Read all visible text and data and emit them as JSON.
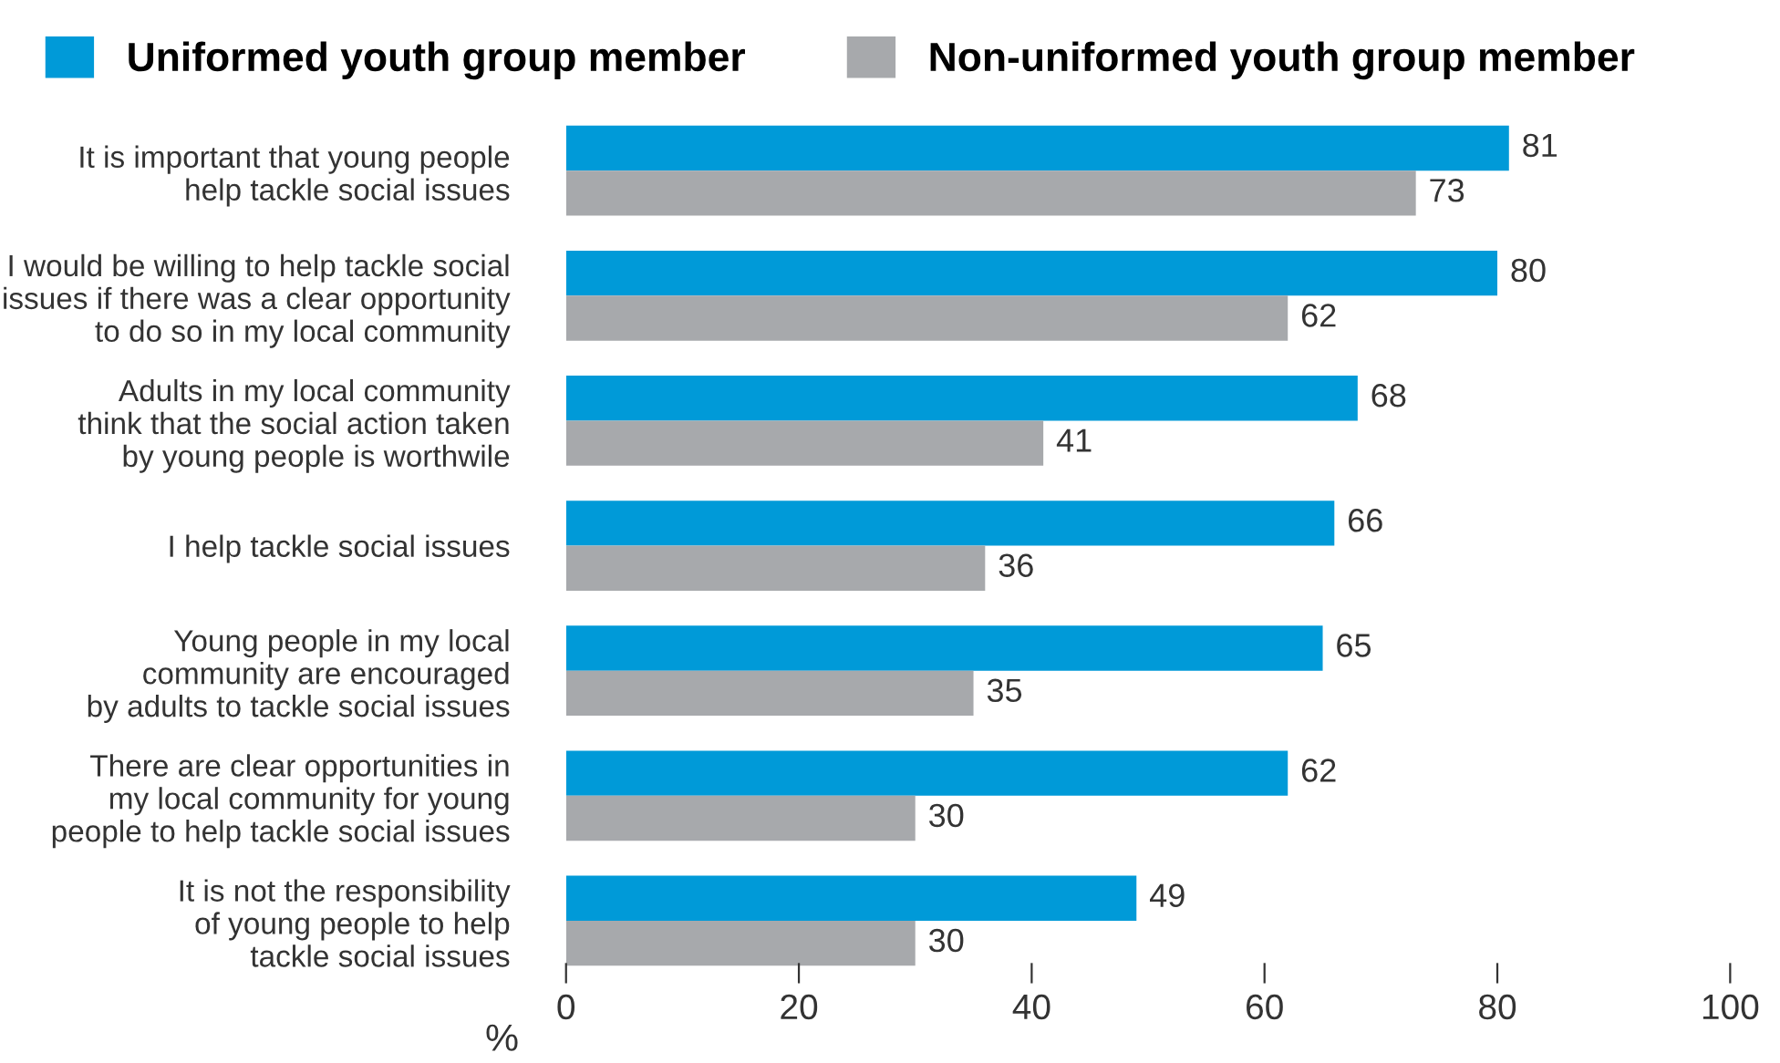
{
  "chart_data": {
    "type": "bar",
    "orientation": "horizontal",
    "xlabel": "%",
    "categories": [
      "It is important that young people\nhelp tackle social issues",
      "I would be willing to help tackle social\nissues if there was a clear opportunity\nto do so in my local community",
      "Adults in my local community\nthink that the social action taken\nby young people is worthwile",
      "I help tackle social issues",
      "Young people in my local\ncommunity are encouraged\nby adults to tackle social issues",
      "There are clear opportunities in\nmy local community for young\npeople to help tackle social issues",
      "It is not the responsibility\nof young people to help\ntackle social issues"
    ],
    "series": [
      {
        "name": "Uniformed youth group member",
        "color": "#009ad8",
        "values": [
          81,
          80,
          68,
          66,
          65,
          62,
          49
        ]
      },
      {
        "name": "Non-uniformed youth group member",
        "color": "#a7a9ac",
        "values": [
          73,
          62,
          41,
          36,
          35,
          30,
          30
        ]
      }
    ],
    "xlim": [
      0,
      100
    ],
    "xticks": [
      0,
      20,
      40,
      60,
      80,
      100
    ],
    "data_labels": true,
    "legend": "top",
    "grid": false
  }
}
